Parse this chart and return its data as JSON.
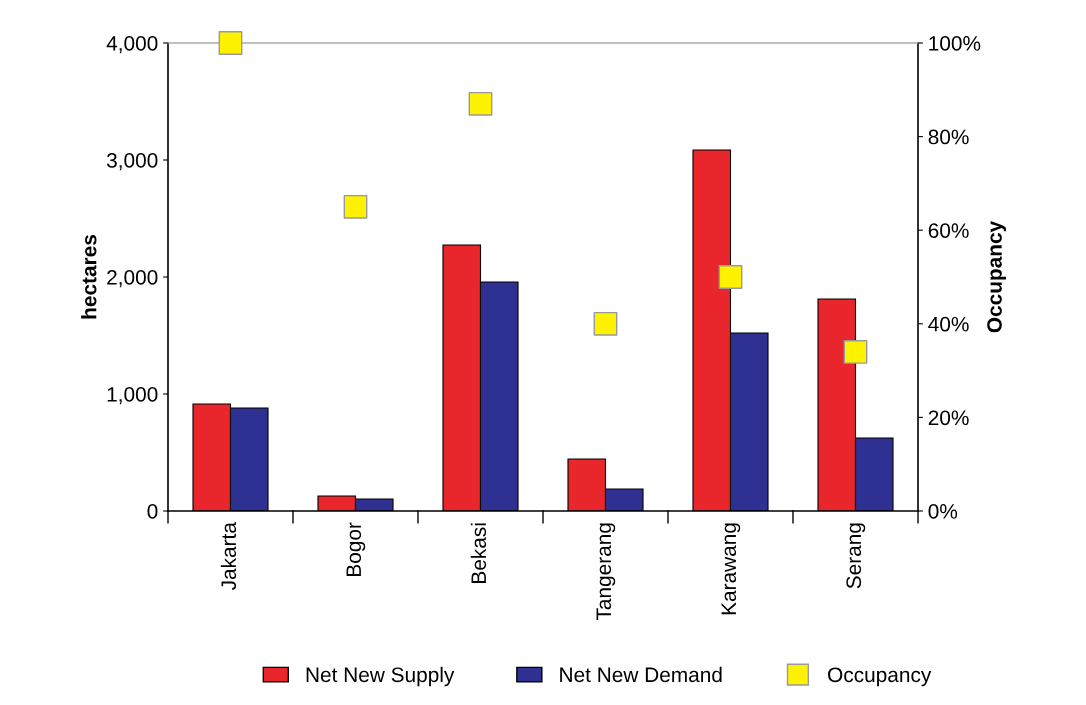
{
  "chart_data": {
    "type": "bar",
    "ylabel": "hectares",
    "y2label": "Occupancy",
    "categories": [
      "Jakarta",
      "Bogor",
      "Bekasi",
      "Tangerang",
      "Karawang",
      "Serang"
    ],
    "series": [
      {
        "name": "Net New Supply",
        "color": "#e8262c",
        "values": [
          915,
          128,
          2274,
          444,
          3085,
          1812
        ]
      },
      {
        "name": "Net New Demand",
        "color": "#2e3192",
        "values": [
          880,
          103,
          1957,
          188,
          1521,
          624
        ]
      },
      {
        "name": "Occupancy",
        "type": "scatter",
        "axis": "y2",
        "color": "#fff200",
        "marker": "square",
        "values": [
          100,
          65,
          87,
          40,
          50,
          34
        ]
      }
    ],
    "ylim": [
      0,
      4000
    ],
    "yticks": [
      {
        "value": 0,
        "label": "0"
      },
      {
        "value": 1000,
        "label": "1,000"
      },
      {
        "value": 2000,
        "label": "2,000"
      },
      {
        "value": 3000,
        "label": "3,000"
      },
      {
        "value": 4000,
        "label": "4,000"
      }
    ],
    "y2lim": [
      0,
      100
    ],
    "y2ticks": [
      {
        "value": 0,
        "label": "0%"
      },
      {
        "value": 20,
        "label": "20%"
      },
      {
        "value": 40,
        "label": "40%"
      },
      {
        "value": 60,
        "label": "60%"
      },
      {
        "value": 80,
        "label": "80%"
      },
      {
        "value": 100,
        "label": "100%"
      }
    ],
    "legend": "bottom",
    "grid": false
  }
}
